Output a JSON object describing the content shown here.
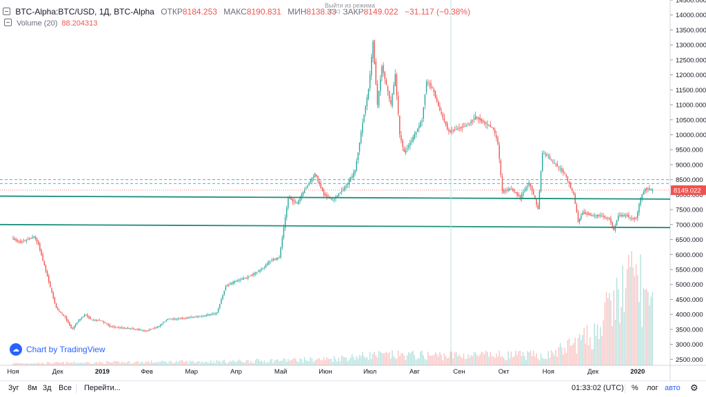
{
  "header": {
    "symbol": "BTC-Alpha:BTC/USD, 1Д, BTC-Alpha",
    "open_label": "ОТКР",
    "open": "8184.253",
    "high_label": "МАКС",
    "high": "8190.831",
    "low_label": "МИН",
    "low": "8138.33",
    "close_label": "ЗАКР",
    "close": "8149.022",
    "change": "−31.117 (−0.38%)"
  },
  "volume": {
    "label": "Volume (20)",
    "value": "88.204313"
  },
  "tooltip": {
    "line1": "Выйти из режима",
    "line2": "(Esc)"
  },
  "logo": {
    "text": "Chart by TradingView",
    "icon": "tradingview-logo-icon"
  },
  "price_label": "8149.022",
  "toolbar": {
    "range_3y": "3уг",
    "range_8m": "8м",
    "range_3d": "3д",
    "range_all": "Все",
    "goto": "Перейти...",
    "clock": "01:33:02 (UTC)",
    "percent": "%",
    "log": "лог",
    "auto": "авто",
    "settings_icon": "gear-icon"
  },
  "colors": {
    "up": "#26a69a",
    "down": "#ef5350",
    "level_line": "#1b8e7a",
    "dashed_line": "#5fa8b5"
  },
  "chart_data": {
    "type": "candlestick",
    "symbol": "BTC/USD",
    "interval": "1Д",
    "y_axis": {
      "ticks": [
        2500,
        3000,
        3500,
        4000,
        4500,
        5000,
        5500,
        6000,
        6500,
        7000,
        7500,
        8000,
        8500,
        9000,
        9500,
        10000,
        10500,
        11000,
        11500,
        12000,
        12500,
        13000,
        13500,
        14000,
        14500
      ],
      "tick_labels": [
        "2500.000",
        "3000.000",
        "3500.000",
        "4000.000",
        "4500.000",
        "5000.000",
        "5500.000",
        "6000.000",
        "6500.000",
        "7000.000",
        "7500.000",
        "8000.000",
        "8500.000",
        "9000.000",
        "9500.000",
        "10000.000",
        "10500.000",
        "11000.000",
        "11500.000",
        "12000.000",
        "12500.000",
        "13000.000",
        "13500.000",
        "14000.000",
        "14500.000"
      ],
      "range": [
        2300,
        14500
      ]
    },
    "x_axis": {
      "labels": [
        "Ноя",
        "Дек",
        "2019",
        "Фев",
        "Мар",
        "Апр",
        "Май",
        "Июн",
        "Июл",
        "Авг",
        "Сен",
        "Окт",
        "Ноя",
        "Дек",
        "2020"
      ],
      "label_month_index": [
        0,
        1,
        2,
        3,
        4,
        5,
        6,
        7,
        8,
        9,
        10,
        11,
        12,
        13,
        14
      ]
    },
    "price_path": [
      [
        0,
        6550
      ],
      [
        0.2,
        6400
      ],
      [
        0.5,
        6600
      ],
      [
        0.6,
        6350
      ],
      [
        0.7,
        5800
      ],
      [
        0.85,
        5000
      ],
      [
        1.0,
        4200
      ],
      [
        1.2,
        3900
      ],
      [
        1.35,
        3500
      ],
      [
        1.5,
        3800
      ],
      [
        1.65,
        4000
      ],
      [
        1.8,
        3800
      ],
      [
        2.0,
        3800
      ],
      [
        2.2,
        3600
      ],
      [
        2.5,
        3550
      ],
      [
        2.8,
        3500
      ],
      [
        3.0,
        3450
      ],
      [
        3.3,
        3600
      ],
      [
        3.5,
        3850
      ],
      [
        3.7,
        3850
      ],
      [
        4.0,
        3900
      ],
      [
        4.3,
        3950
      ],
      [
        4.6,
        4050
      ],
      [
        4.8,
        4950
      ],
      [
        5.0,
        5100
      ],
      [
        5.3,
        5250
      ],
      [
        5.6,
        5500
      ],
      [
        5.8,
        5800
      ],
      [
        6.0,
        5900
      ],
      [
        6.2,
        7900
      ],
      [
        6.4,
        7700
      ],
      [
        6.5,
        8000
      ],
      [
        6.8,
        8700
      ],
      [
        7.0,
        8000
      ],
      [
        7.2,
        7800
      ],
      [
        7.5,
        8300
      ],
      [
        7.7,
        8800
      ],
      [
        7.9,
        10700
      ],
      [
        8.0,
        11500
      ],
      [
        8.1,
        13100
      ],
      [
        8.2,
        11000
      ],
      [
        8.3,
        12300
      ],
      [
        8.5,
        11000
      ],
      [
        8.6,
        12000
      ],
      [
        8.7,
        10000
      ],
      [
        8.8,
        9400
      ],
      [
        9.0,
        9900
      ],
      [
        9.2,
        10500
      ],
      [
        9.3,
        11800
      ],
      [
        9.45,
        11500
      ],
      [
        9.6,
        10800
      ],
      [
        9.8,
        10100
      ],
      [
        10.0,
        10200
      ],
      [
        10.2,
        10300
      ],
      [
        10.4,
        10600
      ],
      [
        10.6,
        10400
      ],
      [
        10.8,
        10200
      ],
      [
        10.9,
        9700
      ],
      [
        11.0,
        8100
      ],
      [
        11.2,
        8200
      ],
      [
        11.4,
        7900
      ],
      [
        11.6,
        8400
      ],
      [
        11.7,
        8000
      ],
      [
        11.8,
        7500
      ],
      [
        11.9,
        9400
      ],
      [
        12.0,
        9300
      ],
      [
        12.2,
        9000
      ],
      [
        12.4,
        8700
      ],
      [
        12.6,
        8000
      ],
      [
        12.7,
        7100
      ],
      [
        12.8,
        7400
      ],
      [
        13.0,
        7300
      ],
      [
        13.2,
        7300
      ],
      [
        13.4,
        7200
      ],
      [
        13.5,
        6800
      ],
      [
        13.6,
        7300
      ],
      [
        13.8,
        7300
      ],
      [
        13.9,
        7200
      ],
      [
        14.0,
        7200
      ],
      [
        14.1,
        7900
      ],
      [
        14.2,
        8200
      ],
      [
        14.35,
        8150
      ]
    ],
    "horizontal_lines": [
      {
        "style": "solid",
        "y_start": 7950,
        "y_end": 7850
      },
      {
        "style": "solid",
        "y_start": 7000,
        "y_end": 6900
      },
      {
        "style": "dashed",
        "y": 8500
      },
      {
        "style": "dashed",
        "y": 8370
      }
    ],
    "volume": {
      "note": "relative volume heights 0..1 by month position",
      "path": [
        [
          0,
          0.02
        ],
        [
          5,
          0.04
        ],
        [
          7,
          0.06
        ],
        [
          8,
          0.1
        ],
        [
          10,
          0.1
        ],
        [
          12,
          0.1
        ],
        [
          13,
          0.3
        ],
        [
          13.6,
          0.7
        ],
        [
          14,
          0.9
        ],
        [
          14.3,
          0.5
        ]
      ]
    },
    "last_price": 8149.022
  }
}
